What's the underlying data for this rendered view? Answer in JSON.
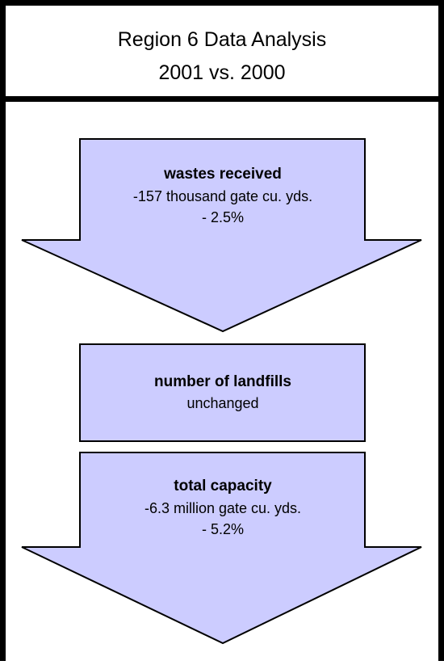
{
  "header": {
    "title_line1": "Region 6 Data Analysis",
    "title_line2": "2001 vs. 2000"
  },
  "nodes": [
    {
      "label": "wastes received",
      "lines": [
        "-157 thousand gate cu. yds.",
        "- 2.5%"
      ]
    },
    {
      "label": "number of landfills",
      "lines": [
        "unchanged"
      ]
    },
    {
      "label": "total capacity",
      "lines": [
        "-6.3 million gate cu. yds.",
        "- 5.2%"
      ]
    }
  ]
}
